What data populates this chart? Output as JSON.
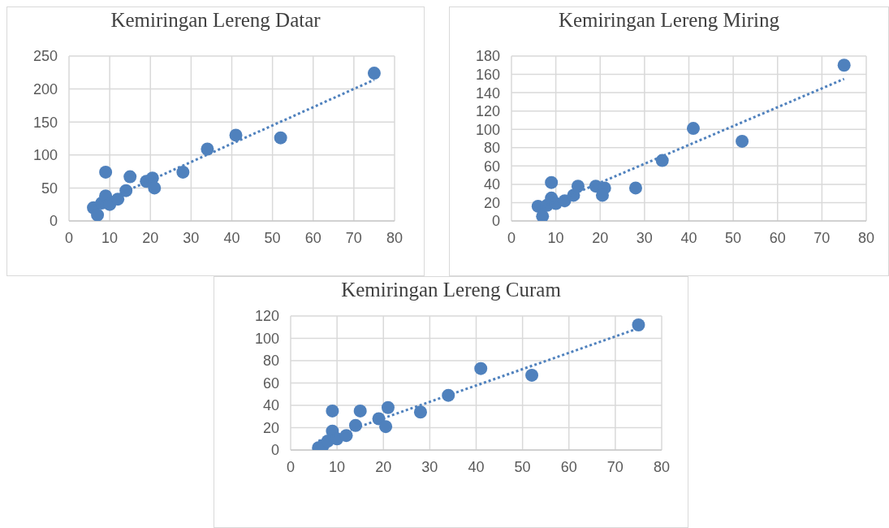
{
  "chart_data": [
    {
      "type": "scatter",
      "title": "Kemiringan Lereng Datar",
      "xlim": [
        0,
        80
      ],
      "xticks": [
        0,
        10,
        20,
        30,
        40,
        50,
        60,
        70,
        80
      ],
      "ylim": [
        0,
        250
      ],
      "yticks": [
        0,
        50,
        100,
        150,
        200,
        250
      ],
      "grid": true,
      "series": [
        {
          "type": "scatter",
          "marker": "circle",
          "color": "#4f81bd",
          "x": [
            6,
            7,
            8,
            9,
            9,
            10,
            12,
            14,
            15,
            19,
            20.5,
            21,
            28,
            34,
            41,
            52,
            75
          ],
          "values": [
            20,
            9,
            27,
            74,
            38,
            25,
            33,
            46,
            67,
            60,
            65,
            50,
            74,
            109,
            130,
            126,
            224
          ]
        },
        {
          "type": "line",
          "marker": "none",
          "color": "#4f81bd",
          "line_style": "dotted",
          "x": [
            6,
            75
          ],
          "values": [
            23,
            214
          ]
        }
      ]
    },
    {
      "type": "scatter",
      "title": "Kemiringan Lereng Miring",
      "xlim": [
        0,
        80
      ],
      "xticks": [
        0,
        10,
        20,
        30,
        40,
        50,
        60,
        70,
        80
      ],
      "ylim": [
        0,
        180
      ],
      "yticks": [
        0,
        20,
        40,
        60,
        80,
        100,
        120,
        140,
        160,
        180
      ],
      "grid": true,
      "series": [
        {
          "type": "scatter",
          "marker": "circle",
          "color": "#4f81bd",
          "x": [
            6,
            7,
            8,
            9,
            9,
            10,
            12,
            14,
            15,
            19,
            21,
            20.5,
            28,
            34,
            41,
            52,
            75
          ],
          "values": [
            16,
            5,
            17,
            42,
            25,
            19,
            22,
            28,
            38,
            38,
            36,
            28,
            36,
            66,
            101,
            87,
            170
          ]
        },
        {
          "type": "line",
          "marker": "none",
          "color": "#4f81bd",
          "line_style": "dotted",
          "x": [
            6,
            75
          ],
          "values": [
            13,
            155
          ]
        }
      ]
    },
    {
      "type": "scatter",
      "title": "Kemiringan Lereng Curam",
      "xlim": [
        0,
        80
      ],
      "xticks": [
        0,
        10,
        20,
        30,
        40,
        50,
        60,
        70,
        80
      ],
      "ylim": [
        0,
        120
      ],
      "yticks": [
        0,
        20,
        40,
        60,
        80,
        100,
        120
      ],
      "grid": true,
      "series": [
        {
          "type": "scatter",
          "marker": "circle",
          "color": "#4f81bd",
          "x": [
            6,
            7,
            8,
            9,
            9,
            10,
            12,
            14,
            15,
            19,
            21,
            20.5,
            28,
            34,
            41,
            52,
            75
          ],
          "values": [
            2,
            4,
            8,
            35,
            17,
            10,
            13,
            22,
            35,
            28,
            38,
            21,
            34,
            49,
            73,
            67,
            112
          ]
        },
        {
          "type": "line",
          "marker": "none",
          "color": "#4f81bd",
          "line_style": "dotted",
          "x": [
            6,
            75
          ],
          "values": [
            8,
            109
          ]
        }
      ]
    }
  ]
}
